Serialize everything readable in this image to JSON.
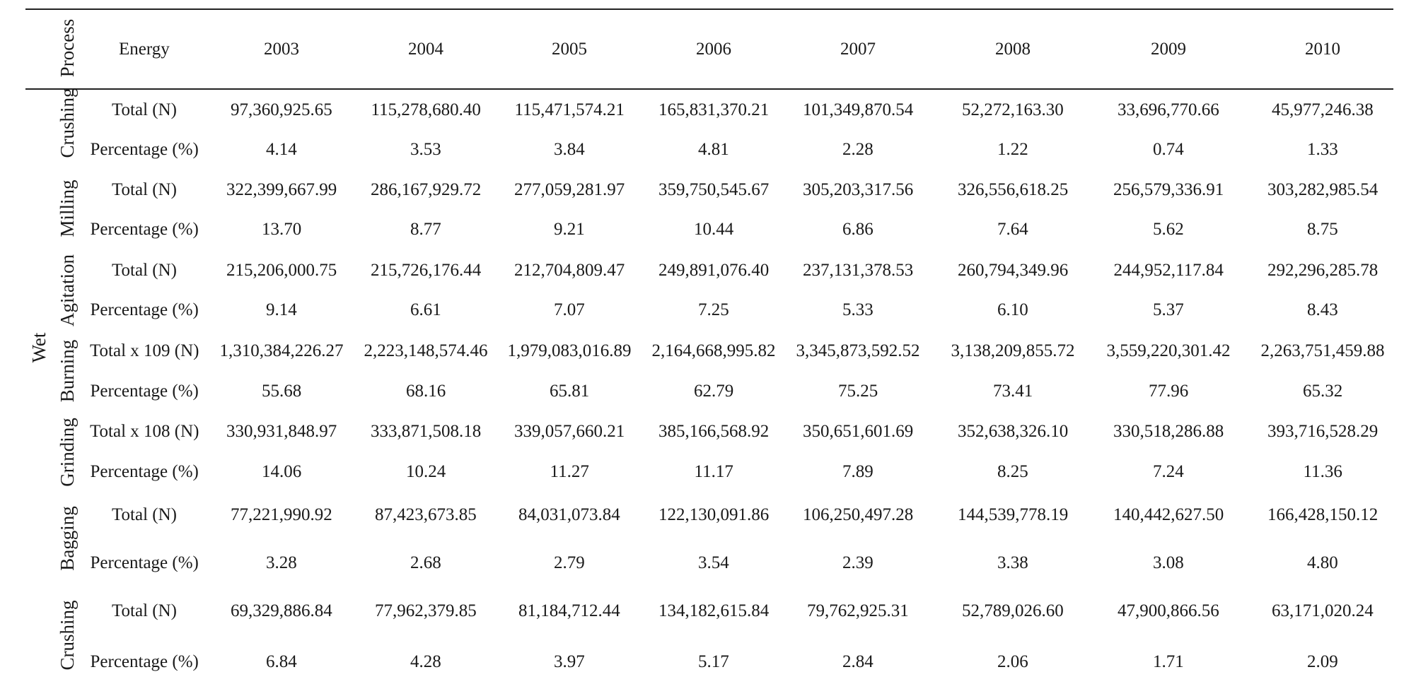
{
  "table": {
    "header": {
      "process": "Process",
      "energy": "Energy",
      "years": [
        "2003",
        "2004",
        "2005",
        "2006",
        "2007",
        "2008",
        "2009",
        "2010"
      ]
    },
    "group_label": "Wet",
    "processes": [
      {
        "name": "Crushing",
        "rows": [
          {
            "label": "Total (N)",
            "values": [
              "97,360,925.65",
              "115,278,680.40",
              "115,471,574.21",
              "165,831,370.21",
              "101,349,870.54",
              "52,272,163.30",
              "33,696,770.66",
              "45,977,246.38"
            ]
          },
          {
            "label": "Percentage (%)",
            "values": [
              "4.14",
              "3.53",
              "3.84",
              "4.81",
              "2.28",
              "1.22",
              "0.74",
              "1.33"
            ]
          }
        ]
      },
      {
        "name": "Milling",
        "rows": [
          {
            "label": "Total (N)",
            "values": [
              "322,399,667.99",
              "286,167,929.72",
              "277,059,281.97",
              "359,750,545.67",
              "305,203,317.56",
              "326,556,618.25",
              "256,579,336.91",
              "303,282,985.54"
            ]
          },
          {
            "label": "Percentage (%)",
            "values": [
              "13.70",
              "8.77",
              "9.21",
              "10.44",
              "6.86",
              "7.64",
              "5.62",
              "8.75"
            ]
          }
        ]
      },
      {
        "name": "Agitation",
        "rows": [
          {
            "label": "Total (N)",
            "values": [
              "215,206,000.75",
              "215,726,176.44",
              "212,704,809.47",
              "249,891,076.40",
              "237,131,378.53",
              "260,794,349.96",
              "244,952,117.84",
              "292,296,285.78"
            ]
          },
          {
            "label": "Percentage (%)",
            "values": [
              "9.14",
              "6.61",
              "7.07",
              "7.25",
              "5.33",
              "6.10",
              "5.37",
              "8.43"
            ]
          }
        ]
      },
      {
        "name": "Burning",
        "rows": [
          {
            "label": "Total x 109 (N)",
            "values": [
              "1,310,384,226.27",
              "2,223,148,574.46",
              "1,979,083,016.89",
              "2,164,668,995.82",
              "3,345,873,592.52",
              "3,138,209,855.72",
              "3,559,220,301.42",
              "2,263,751,459.88"
            ]
          },
          {
            "label": "Percentage (%)",
            "values": [
              "55.68",
              "68.16",
              "65.81",
              "62.79",
              "75.25",
              "73.41",
              "77.96",
              "65.32"
            ]
          }
        ]
      },
      {
        "name": "Grinding",
        "rows": [
          {
            "label": "Total x 108 (N)",
            "values": [
              "330,931,848.97",
              "333,871,508.18",
              "339,057,660.21",
              "385,166,568.92",
              "350,651,601.69",
              "352,638,326.10",
              "330,518,286.88",
              "393,716,528.29"
            ]
          },
          {
            "label": "Percentage (%)",
            "values": [
              "14.06",
              "10.24",
              "11.27",
              "11.17",
              "7.89",
              "8.25",
              "7.24",
              "11.36"
            ]
          }
        ]
      },
      {
        "name": "Bagging",
        "rows": [
          {
            "label": "Total (N)",
            "values": [
              "77,221,990.92",
              "87,423,673.85",
              "84,031,073.84",
              "122,130,091.86",
              "106,250,497.28",
              "144,539,778.19",
              "140,442,627.50",
              "166,428,150.12"
            ]
          },
          {
            "label": "Percentage (%)",
            "values": [
              "3.28",
              "2.68",
              "2.79",
              "3.54",
              "2.39",
              "3.38",
              "3.08",
              "4.80"
            ]
          }
        ]
      },
      {
        "name": "Crushing",
        "rows": [
          {
            "label": "Total (N)",
            "values": [
              "69,329,886.84",
              "77,962,379.85",
              "81,184,712.44",
              "134,182,615.84",
              "79,762,925.31",
              "52,789,026.60",
              "47,900,866.56",
              "63,171,020.24"
            ]
          },
          {
            "label": "Percentage (%)",
            "values": [
              "6.84",
              "4.28",
              "3.97",
              "5.17",
              "2.84",
              "2.06",
              "1.71",
              "2.09"
            ]
          }
        ]
      }
    ]
  }
}
